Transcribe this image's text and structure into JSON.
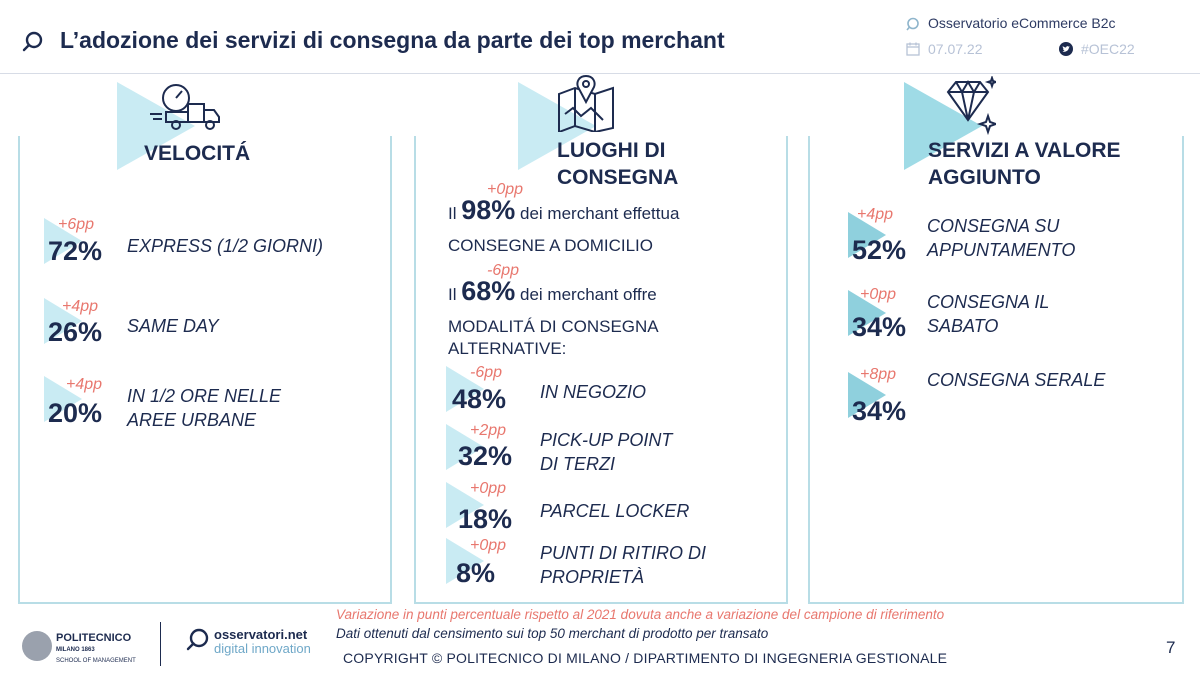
{
  "header": {
    "title": "L’adozione dei servizi di consegna da parte dei top merchant",
    "source": "Osservatorio eCommerce B2c",
    "date": "07.07.22",
    "hashtag": "#OEC22",
    "icons": {
      "logo": "search-ring-icon",
      "source": "chat-bubble-icon",
      "date": "calendar-icon",
      "hashtag": "twitter-icon"
    }
  },
  "panels": [
    {
      "id": "velocita",
      "title": "VELOCITÁ",
      "icon": "fast-delivery-truck-icon",
      "items": [
        {
          "delta": "+6pp",
          "value": "72%",
          "label_lines": [
            "EXPRESS (1/2 GIORNI)"
          ]
        },
        {
          "delta": "+4pp",
          "value": "26%",
          "label_lines": [
            "SAME DAY"
          ]
        },
        {
          "delta": "+4pp",
          "value": "20%",
          "label_lines": [
            "IN 1/2 ORE NELLE",
            "AREE URBANE"
          ]
        }
      ]
    },
    {
      "id": "luoghi",
      "title_lines": [
        "LUOGHI DI",
        "CONSEGNA"
      ],
      "icon": "map-pin-icon",
      "stats": [
        {
          "delta": "+0pp",
          "prefix": "Il",
          "value": "98%",
          "rest": "dei merchant effettua",
          "line2": "CONSEGNE A DOMICILIO"
        },
        {
          "delta": "-6pp",
          "prefix": "Il",
          "value": "68%",
          "rest": "dei merchant offre",
          "line2": "MODALITÁ DI CONSEGNA",
          "line3": "ALTERNATIVE:"
        }
      ],
      "items": [
        {
          "delta": "-6pp",
          "value": "48%",
          "label_lines": [
            "IN NEGOZIO"
          ]
        },
        {
          "delta": "+2pp",
          "value": "32%",
          "label_lines": [
            "PICK-UP POINT",
            "DI TERZI"
          ]
        },
        {
          "delta": "+0pp",
          "value": "18%",
          "label_lines": [
            "PARCEL LOCKER"
          ]
        },
        {
          "delta": "+0pp",
          "value": "8%",
          "label_lines": [
            "PUNTI DI RITIRO DI",
            "PROPRIETÀ"
          ]
        }
      ]
    },
    {
      "id": "servizi",
      "title_lines": [
        "SERVIZI A VALORE",
        "AGGIUNTO"
      ],
      "icon": "diamond-icon",
      "items": [
        {
          "delta": "+4pp",
          "value": "52%",
          "label_lines": [
            "CONSEGNA SU",
            "APPUNTAMENTO"
          ]
        },
        {
          "delta": "+0pp",
          "value": "34%",
          "label_lines": [
            "CONSEGNA IL",
            "SABATO"
          ]
        },
        {
          "delta": "+8pp",
          "value": "34%",
          "label_lines": [
            "CONSEGNA SERALE"
          ]
        }
      ]
    }
  ],
  "footer": {
    "note_red": "Variazione in punti percentuale rispetto al 2021 dovuta anche a variazione del campione di riferimento",
    "note_dark": "Dati ottenuti dal censimento sui top 50 merchant di prodotto per transato",
    "copyright": "COPYRIGHT © POLITECNICO DI MILANO / DIPARTIMENTO DI INGEGNERIA GESTIONALE",
    "page": "7",
    "polimi": {
      "name": "POLITECNICO",
      "line2": "MILANO 1863",
      "line3": "SCHOOL OF MANAGEMENT"
    },
    "osservatori": {
      "name": "osservatori.net",
      "sub": "digital innovation"
    }
  },
  "colors": {
    "navy": "#1d2b4f",
    "accent_red": "#e8776e",
    "cyan_light": "#c9ebf3",
    "cyan_border": "#b8dde6"
  }
}
